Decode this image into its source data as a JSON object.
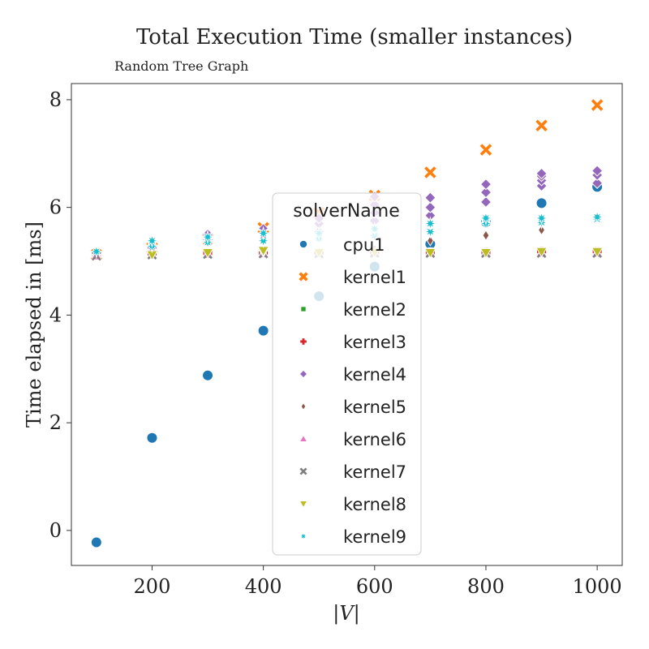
{
  "chart_data": {
    "type": "scatter",
    "title": "Total Execution Time (smaller instances)",
    "subtitle": "Random Tree Graph",
    "xlabel": "|V|",
    "ylabel": "Time elapsed in [ms]",
    "xlim": [
      55,
      1045
    ],
    "ylim": [
      -0.65,
      8.3
    ],
    "xticks": [
      200,
      400,
      600,
      800,
      1000
    ],
    "yticks": [
      0,
      2,
      4,
      6,
      8
    ],
    "grid": false,
    "legend": {
      "title": "solverName",
      "placement": "center"
    },
    "series": [
      {
        "name": "cpu1",
        "color": "#1f77b4",
        "marker": "circle",
        "points": [
          [
            100,
            -0.22
          ],
          [
            200,
            1.72
          ],
          [
            300,
            2.88
          ],
          [
            400,
            3.71
          ],
          [
            500,
            4.35
          ],
          [
            600,
            4.9
          ],
          [
            700,
            5.32
          ],
          [
            800,
            5.72
          ],
          [
            900,
            6.08
          ],
          [
            1000,
            6.38
          ]
        ]
      },
      {
        "name": "kernel1",
        "color": "#ff7f0e",
        "marker": "x",
        "points": [
          [
            100,
            5.12
          ],
          [
            200,
            5.25
          ],
          [
            300,
            5.42
          ],
          [
            400,
            5.62
          ],
          [
            500,
            5.9
          ],
          [
            600,
            6.22
          ],
          [
            700,
            6.65
          ],
          [
            800,
            7.07
          ],
          [
            900,
            7.52
          ],
          [
            1000,
            7.9
          ]
        ]
      },
      {
        "name": "kernel2",
        "color": "#2ca02c",
        "marker": "square",
        "points": [
          [
            100,
            5.12
          ],
          [
            200,
            5.14
          ],
          [
            300,
            5.15
          ],
          [
            400,
            5.15
          ],
          [
            500,
            5.15
          ],
          [
            600,
            5.15
          ],
          [
            700,
            5.15
          ],
          [
            800,
            5.15
          ],
          [
            900,
            5.16
          ],
          [
            1000,
            5.16
          ]
        ]
      },
      {
        "name": "kernel3",
        "color": "#d62728",
        "marker": "plus",
        "points": [
          [
            100,
            5.12
          ],
          [
            200,
            5.14
          ],
          [
            300,
            5.15
          ],
          [
            400,
            5.15
          ],
          [
            500,
            5.15
          ],
          [
            600,
            5.15
          ],
          [
            700,
            5.16
          ],
          [
            800,
            5.16
          ],
          [
            900,
            5.18
          ],
          [
            1000,
            5.18
          ]
        ]
      },
      {
        "name": "kernel4",
        "color": "#9467bd",
        "marker": "diamond",
        "points": [
          [
            100,
            5.15
          ],
          [
            200,
            5.25
          ],
          [
            300,
            5.4
          ],
          [
            300,
            5.5
          ],
          [
            400,
            5.45
          ],
          [
            400,
            5.6
          ],
          [
            500,
            5.55
          ],
          [
            500,
            5.7
          ],
          [
            500,
            5.8
          ],
          [
            600,
            5.75
          ],
          [
            600,
            5.9
          ],
          [
            600,
            6.05
          ],
          [
            600,
            6.2
          ],
          [
            700,
            5.85
          ],
          [
            700,
            6.0
          ],
          [
            700,
            6.18
          ],
          [
            800,
            6.1
          ],
          [
            800,
            6.28
          ],
          [
            800,
            6.43
          ],
          [
            900,
            6.4
          ],
          [
            900,
            6.5
          ],
          [
            900,
            6.58
          ],
          [
            900,
            6.63
          ],
          [
            1000,
            6.45
          ],
          [
            1000,
            6.6
          ],
          [
            1000,
            6.68
          ]
        ]
      },
      {
        "name": "kernel5",
        "color": "#8c564b",
        "marker": "thin-diamond",
        "points": [
          [
            100,
            5.12
          ],
          [
            200,
            5.14
          ],
          [
            300,
            5.15
          ],
          [
            400,
            5.15
          ],
          [
            500,
            5.18
          ],
          [
            600,
            5.22
          ],
          [
            700,
            5.38
          ],
          [
            800,
            5.48
          ],
          [
            900,
            5.58
          ],
          [
            1000,
            5.18
          ]
        ]
      },
      {
        "name": "kernel6",
        "color": "#e377c2",
        "marker": "triangle-up",
        "points": [
          [
            100,
            5.1
          ],
          [
            200,
            5.12
          ],
          [
            300,
            5.13
          ],
          [
            400,
            5.14
          ],
          [
            500,
            5.14
          ],
          [
            600,
            5.15
          ],
          [
            700,
            5.15
          ],
          [
            800,
            5.15
          ],
          [
            900,
            5.15
          ],
          [
            1000,
            5.15
          ]
        ]
      },
      {
        "name": "kernel7",
        "color": "#7f7f7f",
        "marker": "x-small",
        "points": [
          [
            100,
            5.1
          ],
          [
            200,
            5.12
          ],
          [
            300,
            5.13
          ],
          [
            400,
            5.14
          ],
          [
            500,
            5.14
          ],
          [
            600,
            5.15
          ],
          [
            700,
            5.15
          ],
          [
            800,
            5.15
          ],
          [
            900,
            5.15
          ],
          [
            1000,
            5.15
          ]
        ]
      },
      {
        "name": "kernel8",
        "color": "#bcbd22",
        "marker": "triangle-down",
        "points": [
          [
            200,
            5.12
          ],
          [
            300,
            5.16
          ],
          [
            400,
            5.17
          ],
          [
            400,
            5.2
          ],
          [
            500,
            5.16
          ],
          [
            600,
            5.17
          ],
          [
            700,
            5.16
          ],
          [
            800,
            5.16
          ],
          [
            900,
            5.18
          ],
          [
            1000,
            5.18
          ]
        ]
      },
      {
        "name": "kernel9",
        "color": "#17becf",
        "marker": "star",
        "points": [
          [
            100,
            5.18
          ],
          [
            200,
            5.28
          ],
          [
            200,
            5.38
          ],
          [
            300,
            5.35
          ],
          [
            300,
            5.45
          ],
          [
            400,
            5.38
          ],
          [
            400,
            5.52
          ],
          [
            500,
            5.42
          ],
          [
            500,
            5.52
          ],
          [
            600,
            5.48
          ],
          [
            600,
            5.6
          ],
          [
            700,
            5.55
          ],
          [
            700,
            5.7
          ],
          [
            800,
            5.7
          ],
          [
            800,
            5.8
          ],
          [
            900,
            5.72
          ],
          [
            900,
            5.8
          ],
          [
            1000,
            5.78
          ],
          [
            1000,
            5.82
          ]
        ]
      }
    ]
  }
}
